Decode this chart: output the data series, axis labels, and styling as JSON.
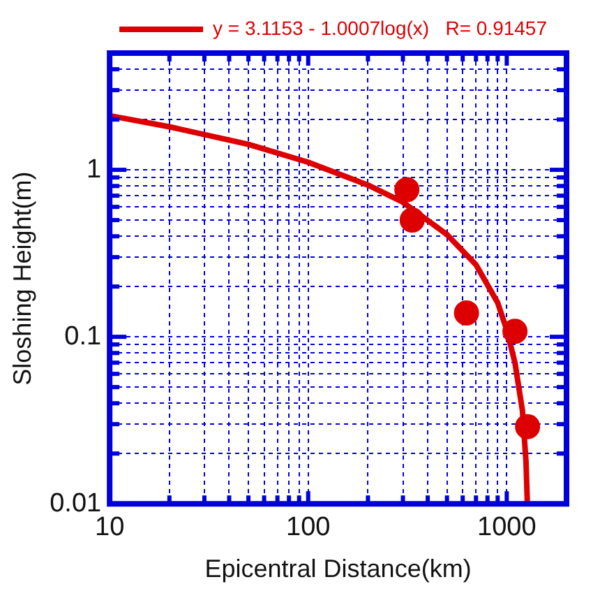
{
  "chart_data": {
    "type": "scatter",
    "xlabel": "Epicentral Distance(km)",
    "ylabel": "Sloshing Height(m)",
    "log": "xy",
    "grid": true,
    "legend": "top",
    "marker": "circle",
    "xlim": [
      10,
      2000
    ],
    "ylim": [
      0.01,
      5
    ],
    "xticks": [
      10,
      {
        "value": 20,
        "label": null
      },
      {
        "value": 30,
        "label": null
      },
      {
        "value": 40,
        "label": null
      },
      {
        "value": 50,
        "label": null
      },
      {
        "value": 60,
        "label": null
      },
      {
        "value": 70,
        "label": null
      },
      {
        "value": 80,
        "label": null
      },
      {
        "value": 90,
        "label": null
      },
      100,
      {
        "value": 200,
        "label": null
      },
      {
        "value": 300,
        "label": null
      },
      {
        "value": 400,
        "label": null
      },
      {
        "value": 500,
        "label": null
      },
      {
        "value": 600,
        "label": null
      },
      {
        "value": 700,
        "label": null
      },
      {
        "value": 800,
        "label": null
      },
      {
        "value": 900,
        "label": null
      },
      1000
    ],
    "yticks": [
      0.01,
      {
        "value": 0.02,
        "label": null
      },
      {
        "value": 0.03,
        "label": null
      },
      {
        "value": 0.04,
        "label": null
      },
      {
        "value": 0.05,
        "label": null
      },
      {
        "value": 0.06,
        "label": null
      },
      {
        "value": 0.07,
        "label": null
      },
      {
        "value": 0.08,
        "label": null
      },
      {
        "value": 0.09,
        "label": null
      },
      0.1,
      {
        "value": 0.2,
        "label": null
      },
      {
        "value": 0.3,
        "label": null
      },
      {
        "value": 0.4,
        "label": null
      },
      {
        "value": 0.5,
        "label": null
      },
      {
        "value": 0.6,
        "label": null
      },
      {
        "value": 0.7,
        "label": null
      },
      {
        "value": 0.8,
        "label": null
      },
      {
        "value": 0.9,
        "label": null
      },
      1,
      {
        "value": 2,
        "label": null
      },
      {
        "value": 3,
        "label": null
      },
      {
        "value": 4,
        "label": null
      }
    ],
    "series": [
      {
        "color": "#dd0000",
        "x": [
          314,
          334,
          627,
          1100,
          1273
        ],
        "values": [
          0.76,
          0.5,
          0.139,
          0.108,
          0.029
        ]
      },
      {
        "type": "line",
        "name": "y = 3.1153 - 1.0007log(x)   R= 0.91457",
        "color": "#dd0000",
        "marker": "none",
        "line_style": "solid",
        "x": [
          10,
          20,
          50,
          100,
          200,
          300,
          500,
          700,
          900,
          1000,
          1100,
          1200,
          1250,
          1270
        ],
        "values": [
          2.11,
          1.81,
          1.42,
          1.11,
          0.81,
          0.64,
          0.41,
          0.27,
          0.16,
          0.11,
          0.07,
          0.036,
          0.018,
          0.01
        ]
      }
    ]
  }
}
